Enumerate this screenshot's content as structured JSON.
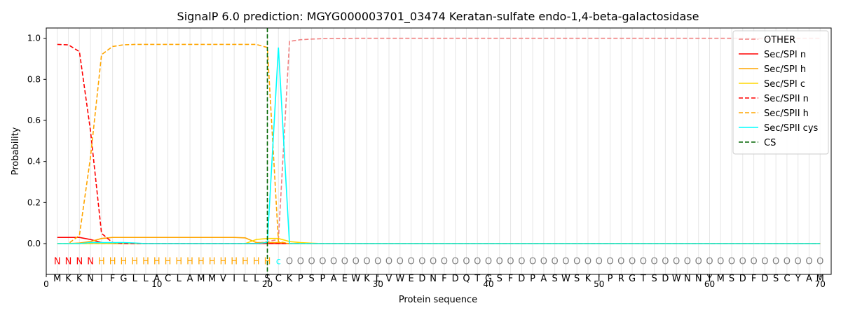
{
  "chart_data": {
    "type": "line",
    "title": "SignalP 6.0 prediction: MGYG000003701_03474 Keratan-sulfate endo-1,4-beta-galactosidase",
    "xlabel": "Protein sequence",
    "ylabel": "Probability",
    "xlim": [
      0,
      71
    ],
    "ylim": [
      -0.15,
      1.05
    ],
    "xticks": [
      0,
      10,
      20,
      30,
      40,
      50,
      60,
      70
    ],
    "yticks": [
      0.0,
      0.2,
      0.4,
      0.6,
      0.8,
      1.0
    ],
    "xtick_labels": [
      "0",
      "10",
      "20",
      "30",
      "40",
      "50",
      "60",
      "70"
    ],
    "ytick_labels": [
      "0.0",
      "0.2",
      "0.4",
      "0.6",
      "0.8",
      "1.0"
    ],
    "legend_position": "top-right",
    "sequence": [
      "M",
      "K",
      "K",
      "N",
      "I",
      "F",
      "G",
      "L",
      "L",
      "A",
      "C",
      "L",
      "A",
      "M",
      "M",
      "V",
      "I",
      "L",
      "L",
      "S",
      "C",
      "K",
      "P",
      "S",
      "P",
      "A",
      "E",
      "W",
      "K",
      "L",
      "V",
      "W",
      "E",
      "D",
      "N",
      "F",
      "D",
      "Q",
      "T",
      "G",
      "S",
      "F",
      "D",
      "P",
      "A",
      "S",
      "W",
      "S",
      "K",
      "I",
      "P",
      "R",
      "G",
      "T",
      "S",
      "D",
      "W",
      "N",
      "N",
      "Y",
      "M",
      "S",
      "D",
      "F",
      "D",
      "S",
      "C",
      "Y",
      "A",
      "M"
    ],
    "labels": [
      "N",
      "N",
      "N",
      "N",
      "H",
      "H",
      "H",
      "H",
      "H",
      "H",
      "H",
      "H",
      "H",
      "H",
      "H",
      "H",
      "H",
      "H",
      "H",
      "H",
      "c",
      "O",
      "O",
      "O",
      "O",
      "O",
      "O",
      "O",
      "O",
      "O",
      "O",
      "O",
      "O",
      "O",
      "O",
      "O",
      "O",
      "O",
      "O",
      "O",
      "O",
      "O",
      "O",
      "O",
      "O",
      "O",
      "O",
      "O",
      "O",
      "O",
      "O",
      "O",
      "O",
      "O",
      "O",
      "O",
      "O",
      "O",
      "O",
      "O",
      "O",
      "O",
      "O",
      "O",
      "O",
      "O",
      "O",
      "O",
      "O",
      "O"
    ],
    "label_colors": {
      "N": "#ff0000",
      "H": "#ffa500",
      "c": "#00ffff",
      "O": "#808080"
    },
    "cs_position": 20,
    "series": [
      {
        "name": "OTHER",
        "color": "#f08080",
        "dash": "dashed",
        "values": [
          0.0,
          0.0,
          0.0,
          0.0,
          0.0,
          0.0,
          0.0,
          0.0,
          0.0,
          0.0,
          0.0,
          0.0,
          0.0,
          0.0,
          0.0,
          0.0,
          0.0,
          0.0,
          0.0,
          0.01,
          0.02,
          0.985,
          0.993,
          0.996,
          0.998,
          0.999,
          0.999,
          1.0,
          1.0,
          1.0,
          1.0,
          1.0,
          1.0,
          1.0,
          1.0,
          1.0,
          1.0,
          1.0,
          1.0,
          1.0,
          1.0,
          1.0,
          1.0,
          1.0,
          1.0,
          1.0,
          1.0,
          1.0,
          1.0,
          1.0,
          1.0,
          1.0,
          1.0,
          1.0,
          1.0,
          1.0,
          1.0,
          1.0,
          1.0,
          1.0,
          1.0,
          1.0,
          1.0,
          1.0,
          1.0,
          1.0,
          1.0,
          1.0,
          1.0,
          1.0
        ]
      },
      {
        "name": "Sec/SPI n",
        "color": "#ff0000",
        "dash": "solid",
        "values": [
          0.03,
          0.03,
          0.03,
          0.02,
          0.005,
          0.0,
          0.0,
          0.0,
          0.0,
          0.0,
          0.0,
          0.0,
          0.0,
          0.0,
          0.0,
          0.0,
          0.0,
          0.0,
          0.0,
          0.0,
          0.0,
          0.0,
          0.0,
          0.0,
          0.0,
          0.0,
          0.0,
          0.0,
          0.0,
          0.0,
          0.0,
          0.0,
          0.0,
          0.0,
          0.0,
          0.0,
          0.0,
          0.0,
          0.0,
          0.0,
          0.0,
          0.0,
          0.0,
          0.0,
          0.0,
          0.0,
          0.0,
          0.0,
          0.0,
          0.0,
          0.0,
          0.0,
          0.0,
          0.0,
          0.0,
          0.0,
          0.0,
          0.0,
          0.0,
          0.0,
          0.0,
          0.0,
          0.0,
          0.0,
          0.0,
          0.0,
          0.0,
          0.0,
          0.0,
          0.0
        ]
      },
      {
        "name": "Sec/SPI h",
        "color": "#ffa500",
        "dash": "solid",
        "values": [
          0.0,
          0.0,
          0.003,
          0.01,
          0.025,
          0.03,
          0.03,
          0.03,
          0.03,
          0.03,
          0.03,
          0.03,
          0.03,
          0.03,
          0.03,
          0.03,
          0.03,
          0.028,
          0.005,
          0.005,
          0.005,
          0.0,
          0.0,
          0.0,
          0.0,
          0.0,
          0.0,
          0.0,
          0.0,
          0.0,
          0.0,
          0.0,
          0.0,
          0.0,
          0.0,
          0.0,
          0.0,
          0.0,
          0.0,
          0.0,
          0.0,
          0.0,
          0.0,
          0.0,
          0.0,
          0.0,
          0.0,
          0.0,
          0.0,
          0.0,
          0.0,
          0.0,
          0.0,
          0.0,
          0.0,
          0.0,
          0.0,
          0.0,
          0.0,
          0.0,
          0.0,
          0.0,
          0.0,
          0.0,
          0.0,
          0.0,
          0.0,
          0.0,
          0.0,
          0.0
        ]
      },
      {
        "name": "Sec/SPI c",
        "color": "#ffd700",
        "dash": "solid",
        "values": [
          0.0,
          0.0,
          0.0,
          0.0,
          0.0,
          0.0,
          0.0,
          0.0,
          0.0,
          0.0,
          0.0,
          0.0,
          0.0,
          0.0,
          0.0,
          0.0,
          0.0,
          0.0,
          0.02,
          0.025,
          0.025,
          0.01,
          0.005,
          0.002,
          0.0,
          0.0,
          0.0,
          0.0,
          0.0,
          0.0,
          0.0,
          0.0,
          0.0,
          0.0,
          0.0,
          0.0,
          0.0,
          0.0,
          0.0,
          0.0,
          0.0,
          0.0,
          0.0,
          0.0,
          0.0,
          0.0,
          0.0,
          0.0,
          0.0,
          0.0,
          0.0,
          0.0,
          0.0,
          0.0,
          0.0,
          0.0,
          0.0,
          0.0,
          0.0,
          0.0,
          0.0,
          0.0,
          0.0,
          0.0,
          0.0,
          0.0,
          0.0,
          0.0,
          0.0,
          0.0
        ]
      },
      {
        "name": "Sec/SPII n",
        "color": "#ff0000",
        "dash": "dashed",
        "values": [
          0.97,
          0.968,
          0.935,
          0.55,
          0.05,
          0.005,
          0.0,
          0.0,
          0.0,
          0.0,
          0.0,
          0.0,
          0.0,
          0.0,
          0.0,
          0.0,
          0.0,
          0.0,
          0.0,
          0.0,
          0.0,
          0.0,
          0.0,
          0.0,
          0.0,
          0.0,
          0.0,
          0.0,
          0.0,
          0.0,
          0.0,
          0.0,
          0.0,
          0.0,
          0.0,
          0.0,
          0.0,
          0.0,
          0.0,
          0.0,
          0.0,
          0.0,
          0.0,
          0.0,
          0.0,
          0.0,
          0.0,
          0.0,
          0.0,
          0.0,
          0.0,
          0.0,
          0.0,
          0.0,
          0.0,
          0.0,
          0.0,
          0.0,
          0.0,
          0.0,
          0.0,
          0.0,
          0.0,
          0.0,
          0.0,
          0.0,
          0.0,
          0.0,
          0.0,
          0.0
        ]
      },
      {
        "name": "Sec/SPII h",
        "color": "#ffa500",
        "dash": "dashed",
        "values": [
          0.0,
          0.0,
          0.04,
          0.42,
          0.92,
          0.96,
          0.968,
          0.97,
          0.97,
          0.97,
          0.97,
          0.97,
          0.97,
          0.97,
          0.97,
          0.97,
          0.97,
          0.97,
          0.97,
          0.955,
          0.01,
          0.0,
          0.0,
          0.0,
          0.0,
          0.0,
          0.0,
          0.0,
          0.0,
          0.0,
          0.0,
          0.0,
          0.0,
          0.0,
          0.0,
          0.0,
          0.0,
          0.0,
          0.0,
          0.0,
          0.0,
          0.0,
          0.0,
          0.0,
          0.0,
          0.0,
          0.0,
          0.0,
          0.0,
          0.0,
          0.0,
          0.0,
          0.0,
          0.0,
          0.0,
          0.0,
          0.0,
          0.0,
          0.0,
          0.0,
          0.0,
          0.0,
          0.0,
          0.0,
          0.0,
          0.0,
          0.0,
          0.0,
          0.0,
          0.0
        ]
      },
      {
        "name": "Sec/SPII cys",
        "color": "#00ffff",
        "dash": "solid",
        "values": [
          0.0,
          0.0,
          0.0,
          0.005,
          0.005,
          0.005,
          0.005,
          0.003,
          0.0,
          0.0,
          0.0,
          0.0,
          0.0,
          0.0,
          0.0,
          0.0,
          0.0,
          0.0,
          0.0,
          0.005,
          0.955,
          0.0,
          0.0,
          0.0,
          0.0,
          0.0,
          0.0,
          0.0,
          0.0,
          0.0,
          0.0,
          0.0,
          0.0,
          0.0,
          0.0,
          0.0,
          0.0,
          0.0,
          0.0,
          0.0,
          0.0,
          0.0,
          0.0,
          0.0,
          0.0,
          0.0,
          0.0,
          0.0,
          0.0,
          0.0,
          0.0,
          0.0,
          0.0,
          0.0,
          0.0,
          0.0,
          0.0,
          0.0,
          0.0,
          0.0,
          0.0,
          0.0,
          0.0,
          0.0,
          0.0,
          0.0,
          0.0,
          0.0,
          0.0,
          0.0
        ]
      }
    ],
    "cs_legend": {
      "name": "CS",
      "color": "#006400",
      "dash": "dashed"
    }
  }
}
